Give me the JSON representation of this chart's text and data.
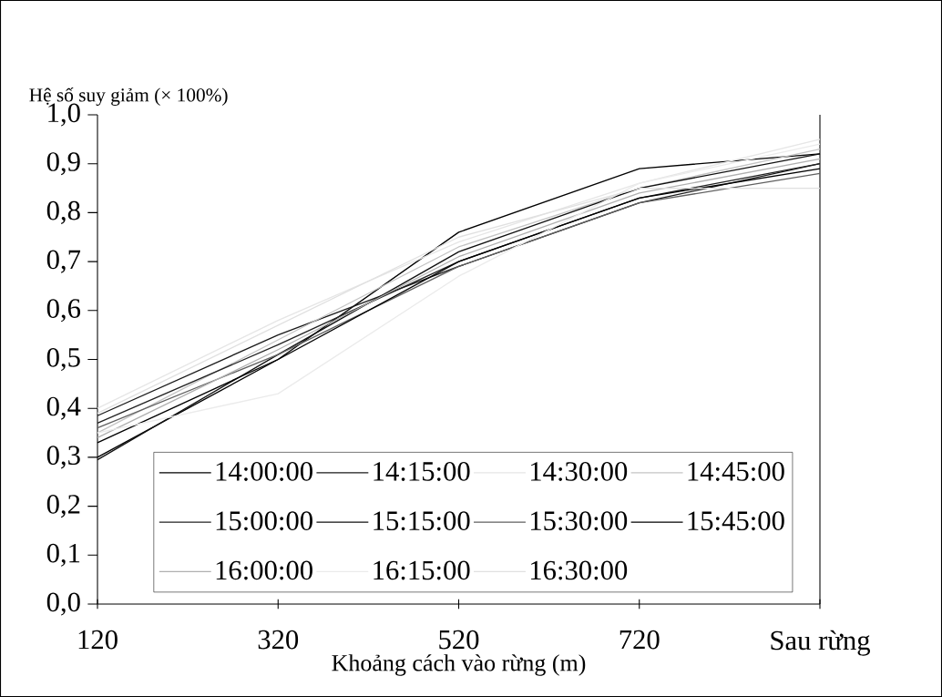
{
  "chart_data": {
    "type": "line",
    "ylabel": "Hệ số suy giảm (× 100%)",
    "xlabel": "Khoảng cách vào rừng (m)",
    "categories": [
      "120",
      "320",
      "520",
      "720",
      "Sau rừng"
    ],
    "ylim": [
      0,
      1
    ],
    "yticks": [
      {
        "value": 0,
        "label": "0,0"
      },
      {
        "value": 0.1,
        "label": "0,1"
      },
      {
        "value": 0.2,
        "label": "0,2"
      },
      {
        "value": 0.3,
        "label": "0,3"
      },
      {
        "value": 0.4,
        "label": "0,4"
      },
      {
        "value": 0.5,
        "label": "0,5"
      },
      {
        "value": 0.6,
        "label": "0,6"
      },
      {
        "value": 0.7,
        "label": "0,7"
      },
      {
        "value": 0.8,
        "label": "0,8"
      },
      {
        "value": 0.9,
        "label": "0,9"
      },
      {
        "value": 1.0,
        "label": "1,0"
      }
    ],
    "legend": "bottom",
    "marker": "none",
    "line_style": "solid",
    "series": [
      {
        "name": "14:00:00",
        "color": "#000000",
        "values": [
          0.3,
          0.5,
          0.76,
          0.89,
          0.92
        ]
      },
      {
        "name": "14:15:00",
        "color": "#1a1a1a",
        "values": [
          0.385,
          0.55,
          0.69,
          0.82,
          0.9
        ]
      },
      {
        "name": "14:30:00",
        "color": "#e6e6e6",
        "values": [
          0.4,
          0.58,
          0.74,
          0.86,
          0.95
        ]
      },
      {
        "name": "14:45:00",
        "color": "#c4c4c4",
        "values": [
          0.35,
          0.54,
          0.73,
          0.85,
          0.93
        ]
      },
      {
        "name": "15:00:00",
        "color": "#222222",
        "values": [
          0.37,
          0.53,
          0.7,
          0.83,
          0.9
        ]
      },
      {
        "name": "15:15:00",
        "color": "#111111",
        "values": [
          0.295,
          0.51,
          0.72,
          0.85,
          0.92
        ]
      },
      {
        "name": "15:30:00",
        "color": "#606060",
        "values": [
          0.36,
          0.51,
          0.69,
          0.82,
          0.88
        ]
      },
      {
        "name": "15:45:00",
        "color": "#000000",
        "values": [
          0.33,
          0.5,
          0.7,
          0.83,
          0.89
        ]
      },
      {
        "name": "16:00:00",
        "color": "#b0b0b0",
        "values": [
          0.34,
          0.52,
          0.71,
          0.84,
          0.91
        ]
      },
      {
        "name": "16:15:00",
        "color": "#ebebeb",
        "values": [
          0.35,
          0.43,
          0.67,
          0.86,
          0.94
        ]
      },
      {
        "name": "16:30:00",
        "color": "#e0e0e0",
        "values": [
          0.39,
          0.57,
          0.75,
          0.85,
          0.85
        ]
      }
    ]
  }
}
